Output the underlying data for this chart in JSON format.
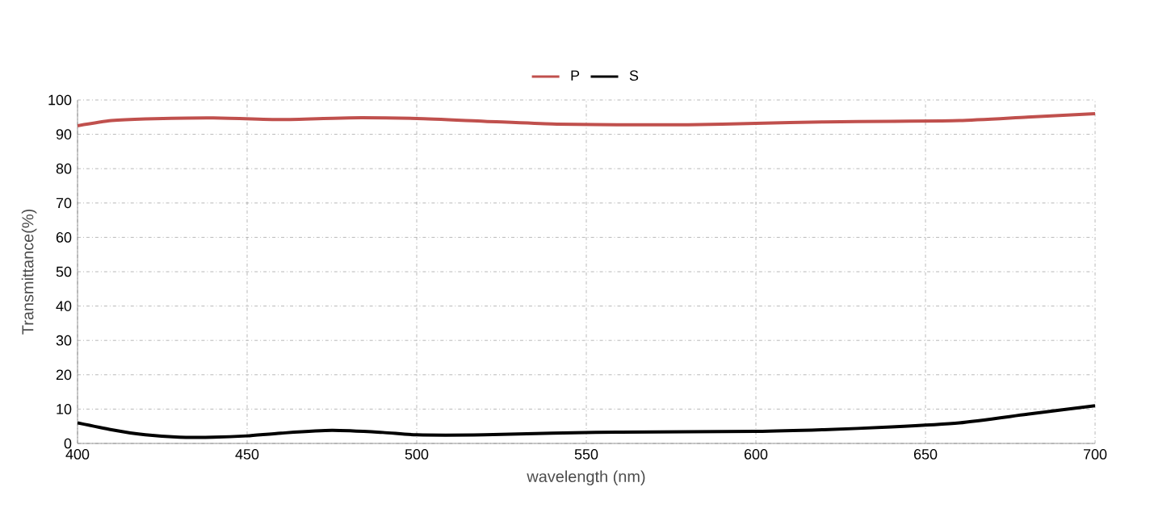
{
  "chart_data": {
    "type": "line",
    "xlabel": "wavelength (nm)",
    "ylabel": "Transmittance(%)",
    "xlim": [
      400,
      700
    ],
    "ylim": [
      0,
      100
    ],
    "xticks": [
      400,
      450,
      500,
      550,
      600,
      650,
      700
    ],
    "yticks": [
      0,
      10,
      20,
      30,
      40,
      50,
      60,
      70,
      80,
      90,
      100
    ],
    "grid": true,
    "legend": "top",
    "marker": "none",
    "line_style": "solid",
    "x": [
      400,
      410,
      420,
      440,
      460,
      480,
      500,
      520,
      540,
      560,
      580,
      600,
      620,
      640,
      660,
      680,
      700
    ],
    "series": [
      {
        "name": "P",
        "color": "#c0504d",
        "values": [
          92.5,
          94,
          94.5,
          94.8,
          94.3,
          94.8,
          94.6,
          93.8,
          93,
          92.8,
          92.8,
          93.2,
          93.6,
          93.8,
          94,
          95,
          96
        ]
      },
      {
        "name": "S",
        "color": "#000000",
        "x": [
          400,
          410,
          420,
          430,
          440,
          450,
          460,
          475,
          490,
          500,
          520,
          540,
          560,
          600,
          620,
          640,
          660,
          680,
          700
        ],
        "values": [
          6,
          4,
          2.5,
          1.8,
          1.8,
          2.2,
          3,
          3.8,
          3.2,
          2.5,
          2.5,
          3,
          3.3,
          3.5,
          4,
          4.8,
          6,
          8.5,
          11
        ]
      }
    ]
  }
}
